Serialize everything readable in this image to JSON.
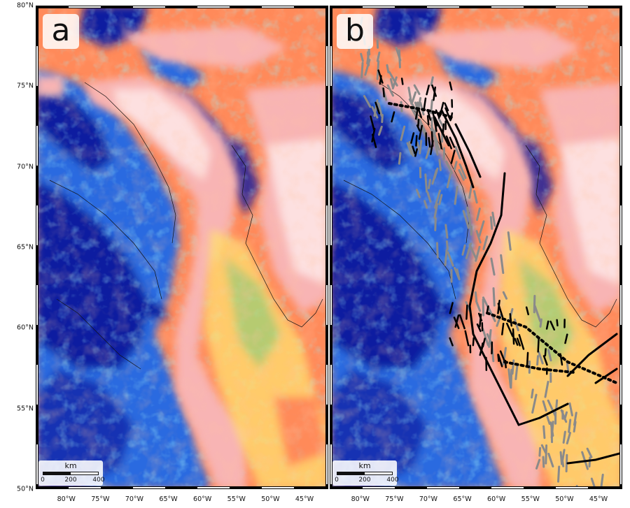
{
  "panels": [
    {
      "label": "a",
      "id": "a"
    },
    {
      "label": "b",
      "id": "b"
    }
  ],
  "scalebar": {
    "unit": "km",
    "ticks": [
      "0",
      "200",
      "400"
    ]
  },
  "latitude_labels": [
    "80°N",
    "75°N",
    "70°N",
    "65°N",
    "60°N",
    "55°N",
    "50°N"
  ],
  "longitude_labels": [
    "80°W",
    "75°W",
    "70°W",
    "65°W",
    "60°W",
    "55°W",
    "50°W",
    "45°W"
  ],
  "map_extent": {
    "lon_min": -84.5,
    "lon_max": -41.5,
    "lat_min": 50,
    "lat_max": 80
  },
  "colors": {
    "deep_blue": "#0a1aa0",
    "blue": "#2a6ae0",
    "cyan": "#5ad0f0",
    "green": "#9ee07a",
    "yellow": "#ffe070",
    "orange": "#ff8a5a",
    "pink": "#f8b4b4",
    "light_pink": "#fde0e0",
    "lineament_black": "#000000",
    "lineament_grey": "#8a8a8a"
  }
}
